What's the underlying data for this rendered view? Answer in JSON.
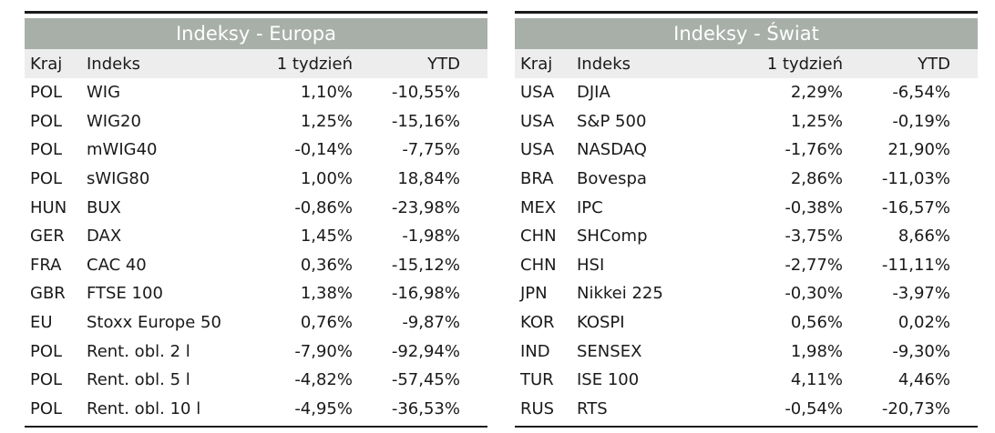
{
  "europe": {
    "title": "Indeksy - Europa",
    "headers": [
      "Kraj",
      "Indeks",
      "1 tydzień",
      "YTD"
    ],
    "rows": [
      [
        "POL",
        "WIG",
        "1,10%",
        "-10,55%"
      ],
      [
        "POL",
        "WIG20",
        "1,25%",
        "-15,16%"
      ],
      [
        "POL",
        "mWIG40",
        "-0,14%",
        "-7,75%"
      ],
      [
        "POL",
        "sWIG80",
        "1,00%",
        "18,84%"
      ],
      [
        "HUN",
        "BUX",
        "-0,86%",
        "-23,98%"
      ],
      [
        "GER",
        "DAX",
        "1,45%",
        "-1,98%"
      ],
      [
        "FRA",
        "CAC 40",
        "0,36%",
        "-15,12%"
      ],
      [
        "GBR",
        "FTSE 100",
        "1,38%",
        "-16,98%"
      ],
      [
        "EU",
        "Stoxx Europe 50",
        "0,76%",
        "-9,87%"
      ],
      [
        "POL",
        "Rent. obl. 2 l",
        "-7,90%",
        "-92,94%"
      ],
      [
        "POL",
        "Rent. obl. 5 l",
        "-4,82%",
        "-57,45%"
      ],
      [
        "POL",
        "Rent. obl. 10 l",
        "-4,95%",
        "-36,53%"
      ]
    ]
  },
  "world": {
    "title": "Indeksy - Świat",
    "headers": [
      "Kraj",
      "Indeks",
      "1 tydzień",
      "YTD"
    ],
    "rows": [
      [
        "USA",
        "DJIA",
        "2,29%",
        "-6,54%"
      ],
      [
        "USA",
        "S&P 500",
        "1,25%",
        "-0,19%"
      ],
      [
        "USA",
        "NASDAQ",
        "-1,76%",
        "21,90%"
      ],
      [
        "BRA",
        "Bovespa",
        "2,86%",
        "-11,03%"
      ],
      [
        "MEX",
        "IPC",
        "-0,38%",
        "-16,57%"
      ],
      [
        "CHN",
        "SHComp",
        "-3,75%",
        "8,66%"
      ],
      [
        "CHN",
        "HSI",
        "-2,77%",
        "-11,11%"
      ],
      [
        "JPN",
        "Nikkei 225",
        "-0,30%",
        "-3,97%"
      ],
      [
        "KOR",
        "KOSPI",
        "0,56%",
        "0,02%"
      ],
      [
        "IND",
        "SENSEX",
        "1,98%",
        "-9,30%"
      ],
      [
        "TUR",
        "ISE 100",
        "4,11%",
        "4,46%"
      ],
      [
        "RUS",
        "RTS",
        "-0,54%",
        "-20,73%"
      ]
    ]
  },
  "colors": {
    "title_bg": "#a8afa9",
    "header_bg": "#ecedec",
    "rule": "#1a1a1a"
  }
}
